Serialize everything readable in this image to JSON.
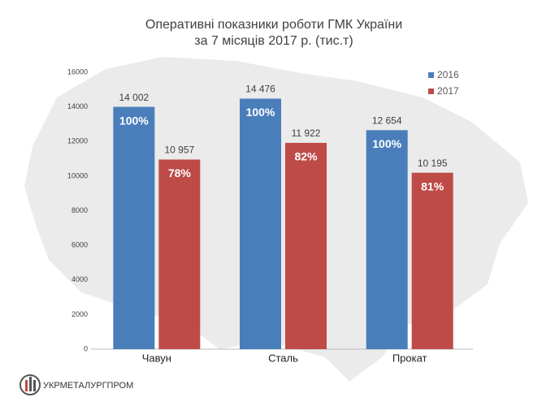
{
  "chart_data": {
    "type": "bar",
    "title": "Оперативні показники роботи ГМК України",
    "subtitle": "за 7 місяців 2017 р. (тис.т)",
    "categories": [
      "Чавун",
      "Сталь",
      "Прокат"
    ],
    "series": [
      {
        "name": "2016",
        "color": "#4a7ebb",
        "values": [
          14002,
          14476,
          12654
        ],
        "value_labels": [
          "14 002",
          "14 476",
          "12 654"
        ],
        "percent_labels": [
          "100%",
          "100%",
          "100%"
        ]
      },
      {
        "name": "2017",
        "color": "#be4b48",
        "values": [
          10957,
          11922,
          10195
        ],
        "value_labels": [
          "10 957",
          "11 922",
          "10 195"
        ],
        "percent_labels": [
          "78%",
          "82%",
          "81%"
        ]
      }
    ],
    "ylim": [
      0,
      16000
    ],
    "yticks": [
      0,
      2000,
      4000,
      6000,
      8000,
      10000,
      12000,
      14000,
      16000
    ],
    "grid": false,
    "legend": "top-right",
    "logo_text": "УКРМЕТАЛУРГПРОМ"
  }
}
